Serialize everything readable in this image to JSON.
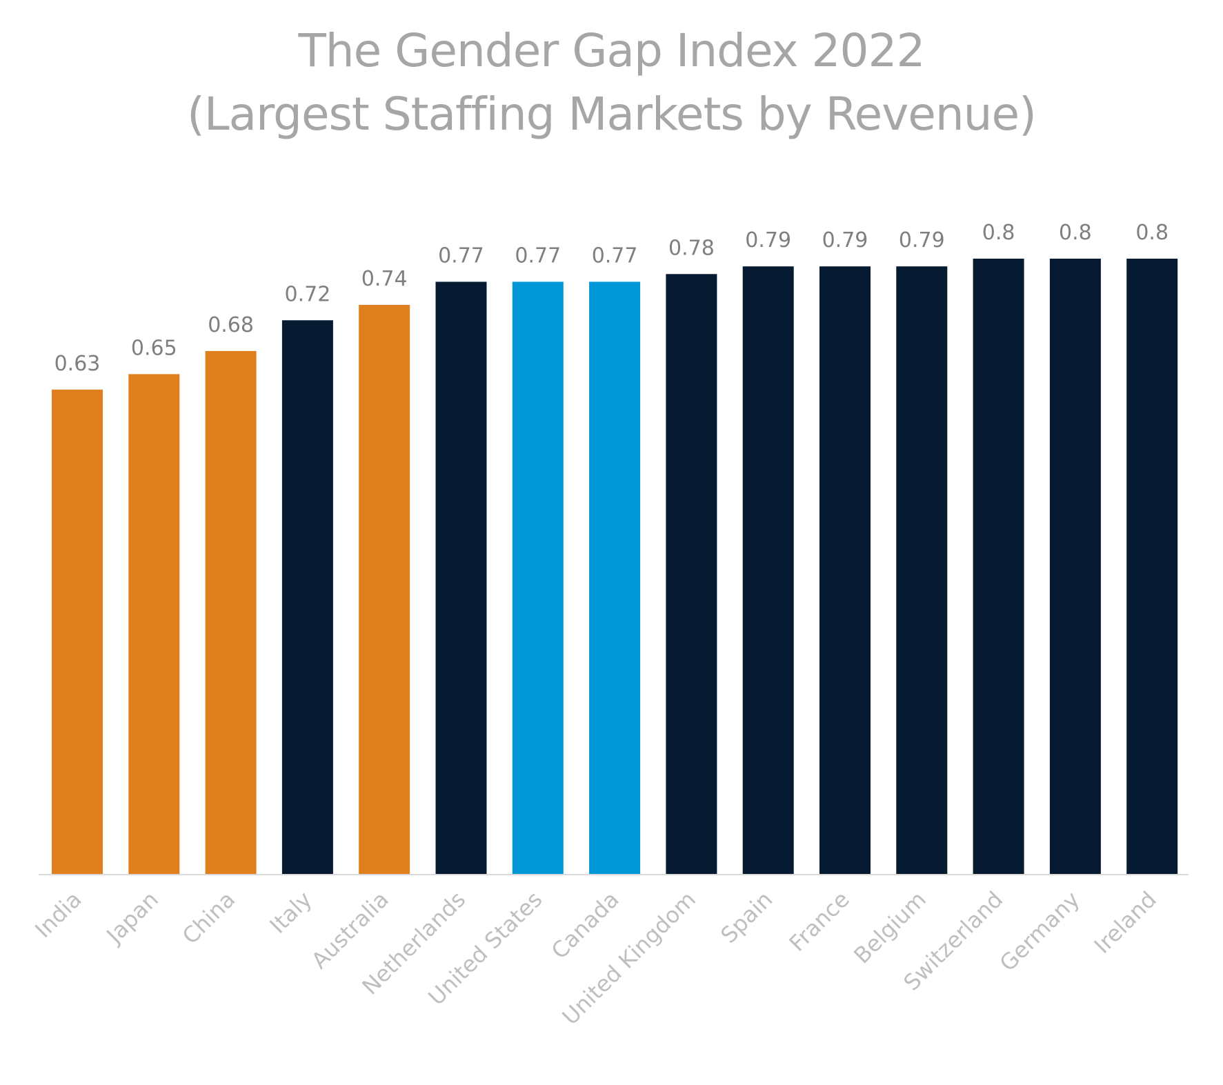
{
  "chart_data": {
    "type": "bar",
    "title": "The Gender Gap Index 2022",
    "subtitle": "(Largest Staffing Markets by Revenue)",
    "xlabel": "",
    "ylabel": "",
    "ylim": [
      0,
      0.8
    ],
    "grid": false,
    "legend": "none",
    "categories": [
      "India",
      "Japan",
      "China",
      "Italy",
      "Australia",
      "Netherlands",
      "United States",
      "Canada",
      "United Kingdom",
      "Spain",
      "France",
      "Belgium",
      "Switzerland",
      "Germany",
      "Ireland"
    ],
    "values": [
      0.63,
      0.65,
      0.68,
      0.72,
      0.74,
      0.77,
      0.77,
      0.77,
      0.78,
      0.79,
      0.79,
      0.79,
      0.8,
      0.8,
      0.8
    ],
    "value_labels": [
      "0.63",
      "0.65",
      "0.68",
      "0.72",
      "0.74",
      "0.77",
      "0.77",
      "0.77",
      "0.78",
      "0.79",
      "0.79",
      "0.79",
      "0.8",
      "0.8",
      "0.8"
    ],
    "bar_colors": [
      "#E07F1E",
      "#E07F1E",
      "#E07F1E",
      "#061B31",
      "#E07F1E",
      "#061B31",
      "#0097D6",
      "#0097D6",
      "#061B31",
      "#061B31",
      "#061B31",
      "#061B31",
      "#061B31",
      "#061B31",
      "#061B31"
    ]
  },
  "colors": {
    "title": "#a6a6a6",
    "value_label": "#7f7f7f",
    "tick_label": "#bfbfbf",
    "axis_line": "#d9d9d9"
  }
}
